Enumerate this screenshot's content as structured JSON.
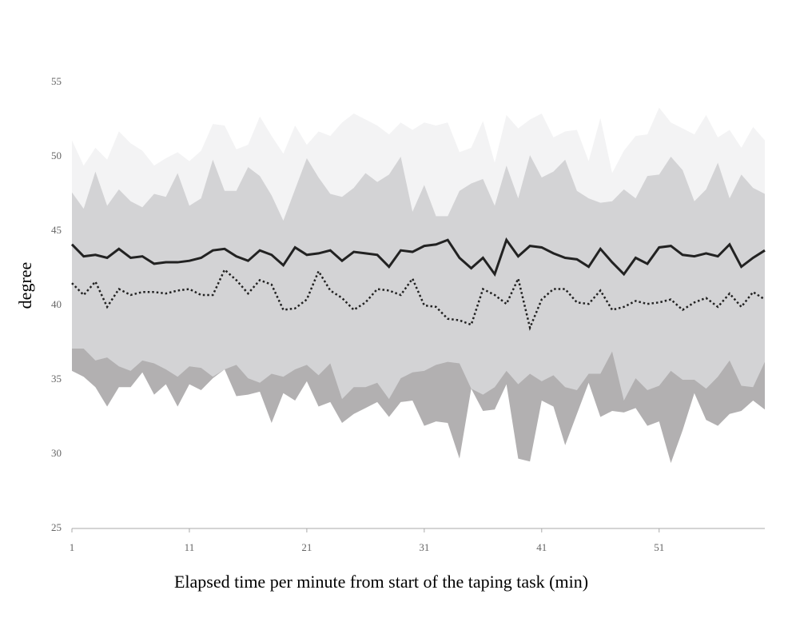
{
  "chart_data": {
    "type": "area",
    "xlabel": "Elapsed time per minute from start of the taping task (min)",
    "ylabel": "degree",
    "x": [
      1,
      2,
      3,
      4,
      5,
      6,
      7,
      8,
      9,
      10,
      11,
      12,
      13,
      14,
      15,
      16,
      17,
      18,
      19,
      20,
      21,
      22,
      23,
      24,
      25,
      26,
      27,
      28,
      29,
      30,
      31,
      32,
      33,
      34,
      35,
      36,
      37,
      38,
      39,
      40,
      41,
      42,
      43,
      44,
      45,
      46,
      47,
      48,
      49,
      50,
      51,
      52,
      53,
      54,
      55,
      56,
      57,
      58,
      59,
      60
    ],
    "xlim": [
      1,
      60
    ],
    "xticks": [
      1,
      11,
      21,
      31,
      41,
      51
    ],
    "ylim": [
      25,
      55
    ],
    "yticks": [
      25,
      30,
      35,
      40,
      45,
      50,
      55
    ],
    "series": [
      {
        "type": "area",
        "color": "#f3f3f4",
        "values": [
          51.1,
          49.4,
          50.6,
          49.8,
          51.7,
          50.9,
          50.4,
          49.4,
          49.9,
          50.3,
          49.7,
          50.4,
          52.2,
          52.1,
          50.5,
          50.8,
          52.7,
          51.4,
          50.2,
          52.1,
          50.8,
          51.7,
          51.4,
          52.3,
          52.9,
          52.5,
          52.1,
          51.5,
          52.3,
          51.8,
          52.3,
          52.1,
          52.3,
          50.3,
          50.6,
          52.4,
          49.6,
          52.8,
          51.9,
          52.5,
          52.9,
          51.3,
          51.7,
          51.8,
          49.7,
          52.6,
          48.9,
          50.4,
          51.4,
          51.5,
          53.3,
          52.3,
          51.9,
          51.5,
          52.8,
          51.3,
          51.8,
          50.6,
          52.0,
          51.1
        ]
      },
      {
        "type": "area",
        "color": "#d3d3d5",
        "values": [
          47.6,
          46.5,
          49.0,
          46.7,
          47.8,
          47.0,
          46.6,
          47.5,
          47.3,
          48.9,
          46.7,
          47.2,
          49.8,
          47.7,
          47.7,
          49.3,
          48.7,
          47.4,
          45.7,
          47.8,
          49.9,
          48.6,
          47.5,
          47.3,
          47.9,
          48.9,
          48.3,
          48.8,
          50.0,
          46.3,
          48.1,
          46.0,
          46.0,
          47.7,
          48.2,
          48.5,
          46.7,
          49.4,
          47.2,
          50.1,
          48.6,
          49.0,
          49.8,
          47.7,
          47.2,
          46.9,
          47.0,
          47.8,
          47.2,
          48.7,
          48.8,
          50.0,
          49.1,
          47.0,
          47.8,
          49.6,
          47.2,
          48.8,
          47.9,
          47.5
        ]
      },
      {
        "type": "area",
        "color": "#b2b0b1",
        "values": [
          37.1,
          37.1,
          36.3,
          36.5,
          35.9,
          35.6,
          36.3,
          36.1,
          35.7,
          35.2,
          35.9,
          35.8,
          35.2,
          35.7,
          36.0,
          35.1,
          34.8,
          35.4,
          35.2,
          35.7,
          36.0,
          35.3,
          36.1,
          33.7,
          34.5,
          34.5,
          34.8,
          33.7,
          35.1,
          35.5,
          35.6,
          36.0,
          36.2,
          36.1,
          34.4,
          34.0,
          34.5,
          35.6,
          34.7,
          35.4,
          34.9,
          35.3,
          34.5,
          34.3,
          35.4,
          35.4,
          36.9,
          33.6,
          35.1,
          34.3,
          34.6,
          35.6,
          35.0,
          35.0,
          34.4,
          35.2,
          36.3,
          34.6,
          34.5,
          36.2
        ]
      },
      {
        "type": "area",
        "color": "#ffffff",
        "values": [
          35.6,
          35.2,
          34.5,
          33.2,
          34.5,
          34.5,
          35.5,
          34.0,
          34.7,
          33.2,
          34.7,
          34.3,
          35.1,
          35.7,
          33.9,
          34.0,
          34.2,
          32.1,
          34.1,
          33.6,
          34.9,
          33.2,
          33.5,
          32.1,
          32.7,
          33.1,
          33.5,
          32.5,
          33.5,
          33.6,
          31.9,
          32.2,
          32.1,
          29.7,
          34.4,
          32.9,
          33.0,
          34.7,
          29.7,
          29.5,
          33.6,
          33.2,
          30.6,
          32.7,
          34.8,
          32.5,
          32.9,
          32.8,
          33.1,
          31.9,
          32.2,
          29.4,
          31.6,
          34.1,
          32.3,
          31.9,
          32.7,
          32.9,
          33.6,
          33.0
        ]
      },
      {
        "type": "line",
        "dash": "solid",
        "color": "#222222",
        "values": [
          44.1,
          43.3,
          43.4,
          43.2,
          43.8,
          43.2,
          43.3,
          42.8,
          42.9,
          42.9,
          43.0,
          43.2,
          43.7,
          43.8,
          43.3,
          43.0,
          43.7,
          43.4,
          42.7,
          43.9,
          43.4,
          43.5,
          43.7,
          43.0,
          43.6,
          43.5,
          43.4,
          42.6,
          43.7,
          43.6,
          44.0,
          44.1,
          44.4,
          43.2,
          42.5,
          43.2,
          42.1,
          44.4,
          43.3,
          44.0,
          43.9,
          43.5,
          43.2,
          43.1,
          42.6,
          43.8,
          42.9,
          42.1,
          43.2,
          42.8,
          43.9,
          44.0,
          43.4,
          43.3,
          43.5,
          43.3,
          44.1,
          42.6,
          43.2,
          43.7
        ]
      },
      {
        "type": "line",
        "dash": "dotted",
        "color": "#222222",
        "values": [
          41.5,
          40.7,
          41.6,
          39.9,
          41.1,
          40.7,
          40.9,
          40.9,
          40.8,
          41.0,
          41.1,
          40.7,
          40.7,
          42.4,
          41.7,
          40.8,
          41.7,
          41.4,
          39.7,
          39.8,
          40.4,
          42.3,
          41.0,
          40.5,
          39.7,
          40.2,
          41.1,
          41.0,
          40.7,
          41.8,
          40.0,
          39.9,
          39.1,
          39.0,
          38.7,
          41.1,
          40.7,
          40.1,
          41.8,
          38.5,
          40.4,
          41.1,
          41.1,
          40.2,
          40.1,
          41.0,
          39.7,
          39.9,
          40.3,
          40.1,
          40.2,
          40.4,
          39.7,
          40.2,
          40.5,
          39.9,
          40.8,
          39.9,
          40.9,
          40.4
        ]
      }
    ]
  }
}
